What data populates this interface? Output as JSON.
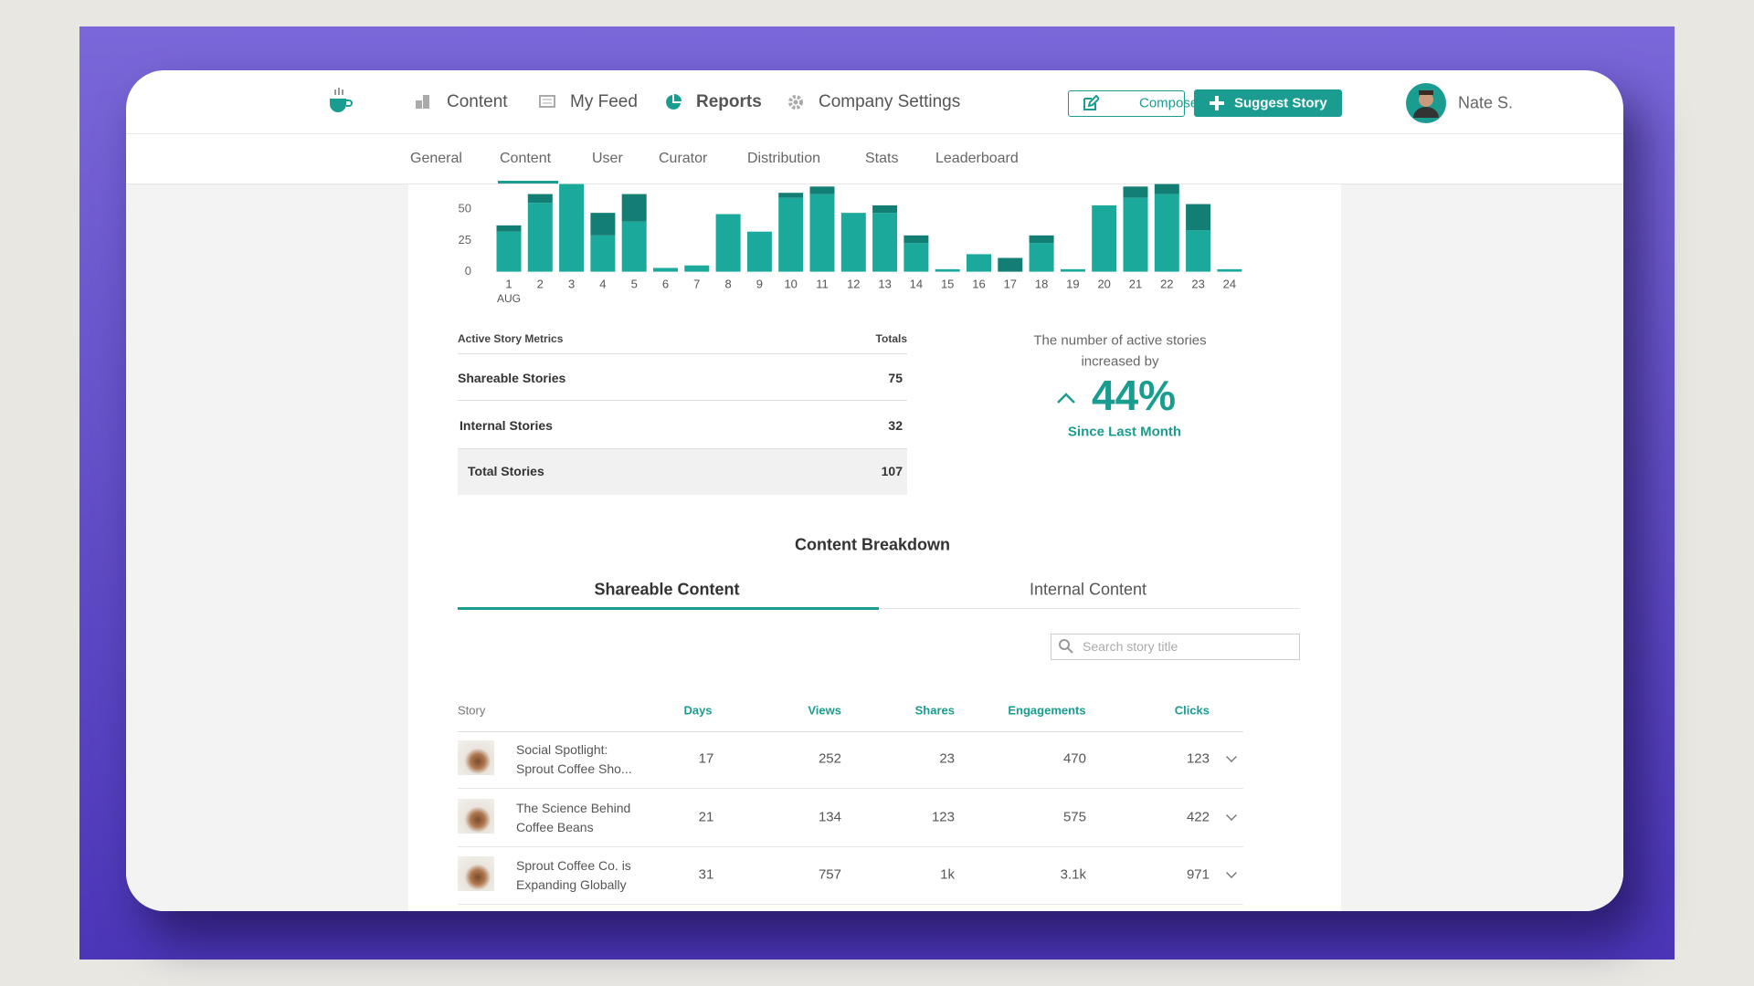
{
  "header": {
    "nav": [
      "Content",
      "My Feed",
      "Reports",
      "Company Settings"
    ],
    "compose": "Compose",
    "suggest": "Suggest Story",
    "user": "Nate S."
  },
  "subnav": [
    "General",
    "Content",
    "User",
    "Curator",
    "Distribution",
    "Stats",
    "Leaderboard"
  ],
  "chart_data": {
    "type": "bar",
    "stacked": true,
    "categories": [
      "1",
      "2",
      "3",
      "4",
      "5",
      "6",
      "7",
      "8",
      "9",
      "10",
      "11",
      "12",
      "13",
      "14",
      "15",
      "16",
      "17",
      "18",
      "19",
      "20",
      "21",
      "22",
      "23",
      "24"
    ],
    "period_label": "AUG",
    "series": [
      {
        "color": "#1ba99b",
        "values": [
          32,
          55,
          70,
          29,
          40,
          3,
          5,
          46,
          32,
          59,
          62,
          47,
          47,
          23,
          2,
          14,
          0,
          23,
          2,
          53,
          59,
          62,
          33,
          2
        ]
      },
      {
        "color": "#137f74",
        "values": [
          5,
          7,
          0,
          18,
          22,
          0,
          0,
          0,
          0,
          4,
          6,
          0,
          6,
          6,
          0,
          0,
          11,
          6,
          0,
          0,
          9,
          8,
          21,
          0
        ]
      }
    ],
    "ylim": [
      0,
      70
    ],
    "yticks": [
      0,
      25,
      50
    ]
  },
  "metrics": {
    "header": [
      "Active Story Metrics",
      "Totals"
    ],
    "rows": [
      [
        "Shareable Stories",
        75
      ],
      [
        "Internal Stories",
        32
      ],
      [
        "Total Stories",
        107
      ]
    ]
  },
  "highlight": {
    "line1": "The number of active stories",
    "line2": "increased by",
    "value": "44%",
    "subtitle": "Since Last Month"
  },
  "breakdown": {
    "title": "Content Breakdown",
    "tabs": [
      "Shareable Content",
      "Internal Content"
    ],
    "search_placeholder": "Search story title",
    "columns": [
      "Story",
      "Days",
      "Views",
      "Shares",
      "Engagements",
      "Clicks"
    ],
    "rows": [
      {
        "title": [
          "Social Spotlight:",
          "Sprout Coffee Sho..."
        ],
        "cells": [
          17,
          252,
          23,
          470,
          123
        ]
      },
      {
        "title": [
          "The Science Behind",
          "Coffee Beans"
        ],
        "cells": [
          21,
          134,
          123,
          575,
          422
        ]
      },
      {
        "title": [
          "Sprout Coffee Co. is",
          "Expanding Globally"
        ],
        "cells": [
          31,
          757,
          "1k",
          "3.1k",
          971
        ]
      }
    ]
  }
}
